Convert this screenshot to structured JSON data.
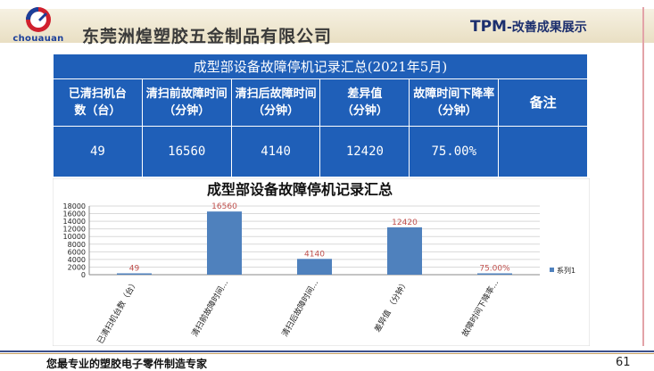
{
  "header": {
    "logo_text": "chouauan",
    "company": "东莞洲煌塑胶五金制品有限公司",
    "tpm_big": "TPM",
    "tpm_rest": "-改善成果展示"
  },
  "table": {
    "title": "成型部设备故障停机记录汇总(2021年5月)",
    "headers": [
      {
        "line1": "已清扫机台",
        "line2": "数（台）"
      },
      {
        "line1": "清扫前故障时间",
        "line2": "（分钟）"
      },
      {
        "line1": "清扫后故障时间",
        "line2": "（分钟）"
      },
      {
        "line1": "差异值",
        "line2": "（分钟）"
      },
      {
        "line1": "故障时间下降率",
        "line2": "（分钟）"
      },
      {
        "line1": "备注",
        "line2": ""
      }
    ],
    "values": [
      "49",
      "16560",
      "4140",
      "12420",
      "75.00%",
      ""
    ]
  },
  "chart_data": {
    "type": "bar",
    "title": "成型部设备故障停机记录汇总",
    "categories": [
      "已清扫机台数（台）",
      "清扫前故障时间...",
      "清扫后故障时间...",
      "差异值 （分钟）",
      "故障时间下降率..."
    ],
    "series": [
      {
        "name": "系列1",
        "values": [
          49,
          16560,
          4140,
          12420,
          0.75
        ]
      }
    ],
    "data_labels": [
      "49",
      "16560",
      "4140",
      "12420",
      "75.00%"
    ],
    "yticks": [
      "0",
      "2000",
      "4000",
      "6000",
      "8000",
      "10000",
      "12000",
      "14000",
      "16000",
      "18000"
    ],
    "ylim": [
      0,
      18000
    ],
    "grid": true,
    "legend": "right",
    "colors": {
      "bar": "#4f81bd",
      "label": "#c0504d"
    }
  },
  "footer": {
    "slogan": "您最专业的塑胶电子零件制造专家",
    "page_number": "61"
  },
  "colors": {
    "table_bg": "#1f5fb8",
    "brand_blue": "#1b3f9a",
    "brand_red": "#d0202e"
  }
}
